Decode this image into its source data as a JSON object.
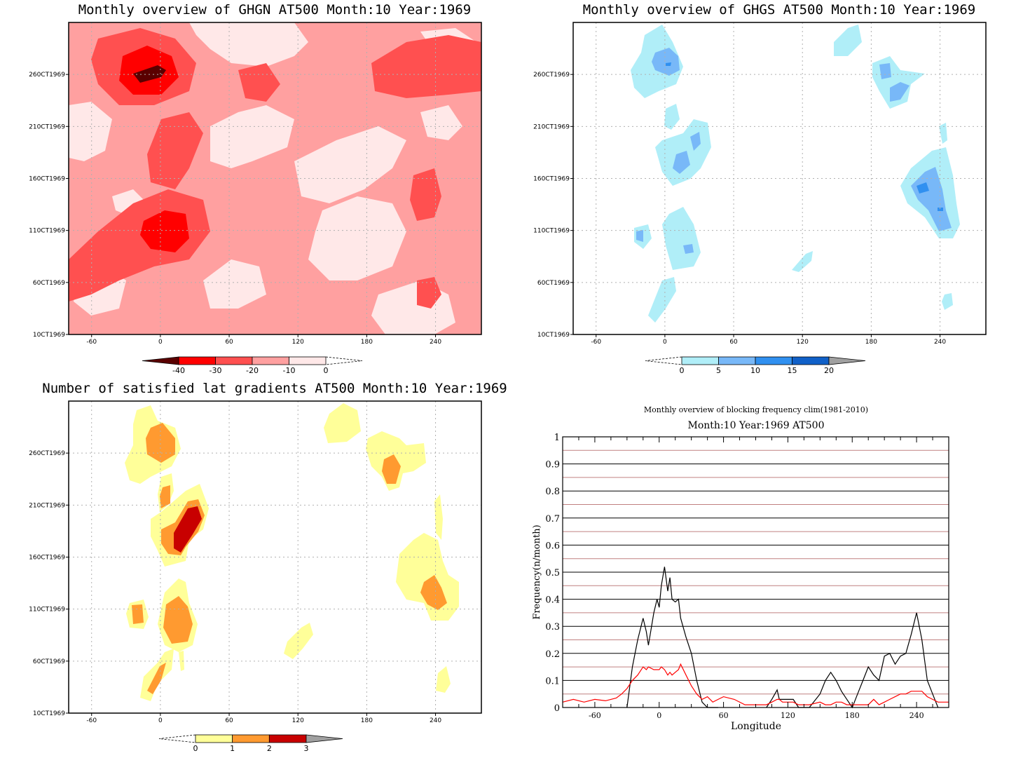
{
  "chart_data": [
    {
      "type": "heatmap",
      "title": "Monthly overview of GHGN AT500 Month:10 Year:1969",
      "xticks": [
        "-60",
        "0",
        "60",
        "120",
        "180",
        "240"
      ],
      "xtick_values": [
        -60,
        0,
        60,
        120,
        180,
        240
      ],
      "xlim": [
        -80,
        280
      ],
      "yticks": [
        "10CT1969",
        "60CT1969",
        "110CT1969",
        "160CT1969",
        "210CT1969",
        "260CT1969"
      ],
      "ytick_values": [
        1,
        6,
        11,
        16,
        21,
        26
      ],
      "ylim": [
        1,
        31
      ],
      "colorbar": {
        "ticks": [
          "-40",
          "-30",
          "-20",
          "-10",
          "0"
        ],
        "colors": [
          "#5a0000",
          "#ff0000",
          "#ff5050",
          "#ffa0a0",
          "#ffe8e8"
        ]
      },
      "colors": {
        "background": "#ffa0a0",
        "light": "#ffe8e8",
        "mid": "#ff5050",
        "strong": "#ff0000",
        "darkest": "#5a0000"
      }
    },
    {
      "type": "heatmap",
      "title": "Monthly overview of GHGS AT500 Month:10 Year:1969",
      "xticks": [
        "-60",
        "0",
        "60",
        "120",
        "180",
        "240"
      ],
      "xtick_values": [
        -60,
        0,
        60,
        120,
        180,
        240
      ],
      "xlim": [
        -80,
        280
      ],
      "yticks": [
        "10CT1969",
        "60CT1969",
        "110CT1969",
        "160CT1969",
        "210CT1969",
        "260CT1969"
      ],
      "ytick_values": [
        1,
        6,
        11,
        16,
        21,
        26
      ],
      "ylim": [
        1,
        31
      ],
      "colorbar": {
        "ticks": [
          "0",
          "5",
          "10",
          "15",
          "20"
        ],
        "colors": [
          "#b0eef8",
          "#78b8f8",
          "#3090f0",
          "#1060c8",
          "#a0a0a0"
        ]
      },
      "colors": {
        "light": "#b0eef8",
        "mid": "#78b8f8",
        "strong": "#3090f0"
      }
    },
    {
      "type": "heatmap",
      "title": "Number of satisfied lat gradients AT500 Month:10 Year:1969",
      "xticks": [
        "-60",
        "0",
        "60",
        "120",
        "180",
        "240"
      ],
      "xtick_values": [
        -60,
        0,
        60,
        120,
        180,
        240
      ],
      "xlim": [
        -80,
        280
      ],
      "yticks": [
        "10CT1969",
        "60CT1969",
        "110CT1969",
        "160CT1969",
        "210CT1969",
        "260CT1969"
      ],
      "ytick_values": [
        1,
        6,
        11,
        16,
        21,
        26
      ],
      "ylim": [
        1,
        31
      ],
      "colorbar": {
        "ticks": [
          "0",
          "1",
          "2",
          "3"
        ],
        "colors": [
          "#ffff99",
          "#ff9a30",
          "#c80000",
          "#a0a0a0"
        ]
      },
      "colors": {
        "light": "#ffff99",
        "mid": "#ff9a30",
        "strong": "#c80000"
      }
    },
    {
      "type": "line",
      "title": "Monthly overview of blocking frequency clim(1981-2010)",
      "subtitle": "Month:10 Year:1969  AT500",
      "xlabel": "Longitude",
      "ylabel": "Frequency(n/month)",
      "xlim": [
        -90,
        270
      ],
      "ylim": [
        0,
        1
      ],
      "xticks": [
        "-60",
        "0",
        "60",
        "120",
        "180",
        "240"
      ],
      "xtick_values": [
        -60,
        0,
        60,
        120,
        180,
        240
      ],
      "yticks": [
        "0",
        "0.1",
        "0.2",
        "0.3",
        "0.4",
        "0.5",
        "0.6",
        "0.7",
        "0.8",
        "0.9",
        "1"
      ],
      "ytick_values": [
        0,
        0.1,
        0.2,
        0.3,
        0.4,
        0.5,
        0.6,
        0.7,
        0.8,
        0.9,
        1
      ],
      "x": [
        -90,
        -80,
        -70,
        -60,
        -50,
        -40,
        -35,
        -30,
        -25,
        -20,
        -15,
        -12,
        -10,
        -5,
        -2,
        0,
        2,
        5,
        8,
        10,
        12,
        15,
        18,
        20,
        25,
        30,
        35,
        40,
        45,
        50,
        55,
        60,
        70,
        80,
        90,
        100,
        105,
        110,
        112,
        115,
        120,
        125,
        130,
        140,
        150,
        155,
        160,
        165,
        170,
        175,
        180,
        185,
        190,
        195,
        200,
        205,
        210,
        215,
        220,
        225,
        230,
        235,
        240,
        245,
        250,
        255,
        260,
        265,
        270
      ],
      "series": [
        {
          "color": "#000000",
          "values": [
            null,
            null,
            null,
            null,
            null,
            null,
            null,
            0,
            0.15,
            0.25,
            0.33,
            0.28,
            0.23,
            0.35,
            0.4,
            0.37,
            0.45,
            0.52,
            0.43,
            0.48,
            0.4,
            0.39,
            0.4,
            0.33,
            0.26,
            0.2,
            0.1,
            0.02,
            0,
            0,
            0,
            null,
            null,
            null,
            null,
            0,
            0.03,
            0.065,
            0.03,
            0.03,
            0.03,
            0.03,
            0,
            0,
            0.05,
            0.1,
            0.13,
            0.1,
            0.06,
            0.03,
            0,
            0.05,
            0.1,
            0.15,
            0.12,
            0.1,
            0.19,
            0.2,
            0.16,
            0.19,
            0.2,
            0.27,
            0.35,
            0.25,
            0.1,
            0.05,
            0,
            null,
            null
          ]
        },
        {
          "color": "#ff0000",
          "values": [
            0.02,
            0.03,
            0.02,
            0.03,
            0.025,
            0.035,
            0.05,
            0.07,
            0.1,
            0.12,
            0.15,
            0.14,
            0.15,
            0.14,
            0.14,
            0.14,
            0.15,
            0.14,
            0.12,
            0.13,
            0.12,
            0.13,
            0.14,
            0.16,
            0.12,
            0.08,
            0.05,
            0.03,
            0.04,
            0.02,
            0.03,
            0.04,
            0.03,
            0.01,
            0.01,
            0.01,
            0.02,
            0.03,
            0.03,
            0.02,
            0.02,
            0.02,
            0.01,
            0.01,
            0.02,
            0.01,
            0.01,
            0.02,
            0.02,
            0.01,
            0.01,
            0.01,
            0.01,
            0.01,
            0.03,
            0.01,
            0.02,
            0.03,
            0.04,
            0.05,
            0.05,
            0.06,
            0.06,
            0.06,
            0.04,
            0.03,
            0.02,
            0.02,
            0.02
          ]
        }
      ]
    }
  ]
}
